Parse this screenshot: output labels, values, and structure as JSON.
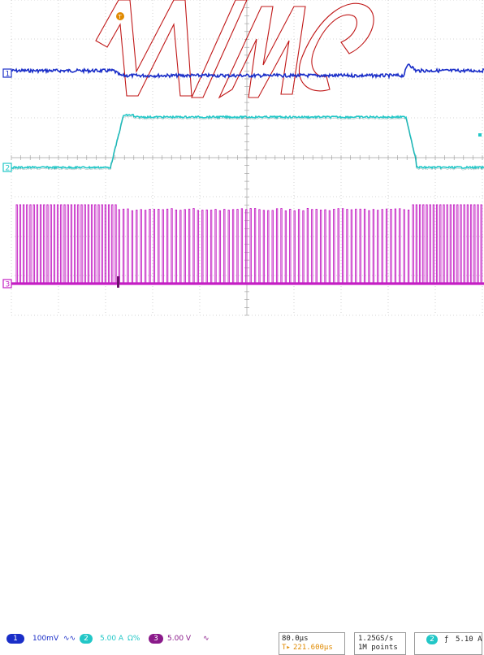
{
  "scope": {
    "background": "#ffffff",
    "grid_color": "#c8c8c8",
    "channels": [
      {
        "id": "1",
        "marker": "1",
        "color": "#1a2ec8"
      },
      {
        "id": "2",
        "marker": "2",
        "color": "#22c7c7"
      },
      {
        "id": "3",
        "marker": "3",
        "color": "#c31ec3"
      }
    ],
    "trigger_marker": "T",
    "trigger_color": "#e08a00"
  },
  "status": {
    "ch1": {
      "badge": "1",
      "scale": "100mV",
      "coupling_icon": "bandwidth-icon",
      "coupling": "∿∿",
      "color": "#1a2ec8"
    },
    "ch2": {
      "badge": "2",
      "scale": "5.00 A",
      "offset_icon": "offset-icon",
      "offset": "Ω%",
      "color": "#22c7c7"
    },
    "ch3": {
      "badge": "3",
      "scale": "5.00 V",
      "coupling_icon": "ac-coupling-icon",
      "coupling": "∿",
      "color": "#8a1a8a"
    },
    "timebase": {
      "scale": "80.0µs",
      "trigger_delay": "221.600µs",
      "delay_prefix": "T▸"
    },
    "acquisition": {
      "sample_rate": "1.25GS/s",
      "record_length": "1M points"
    },
    "trigger": {
      "channel": "2",
      "slope_icon": "rising-edge-icon",
      "slope": "ƒ",
      "level": "5.10 A"
    }
  }
}
